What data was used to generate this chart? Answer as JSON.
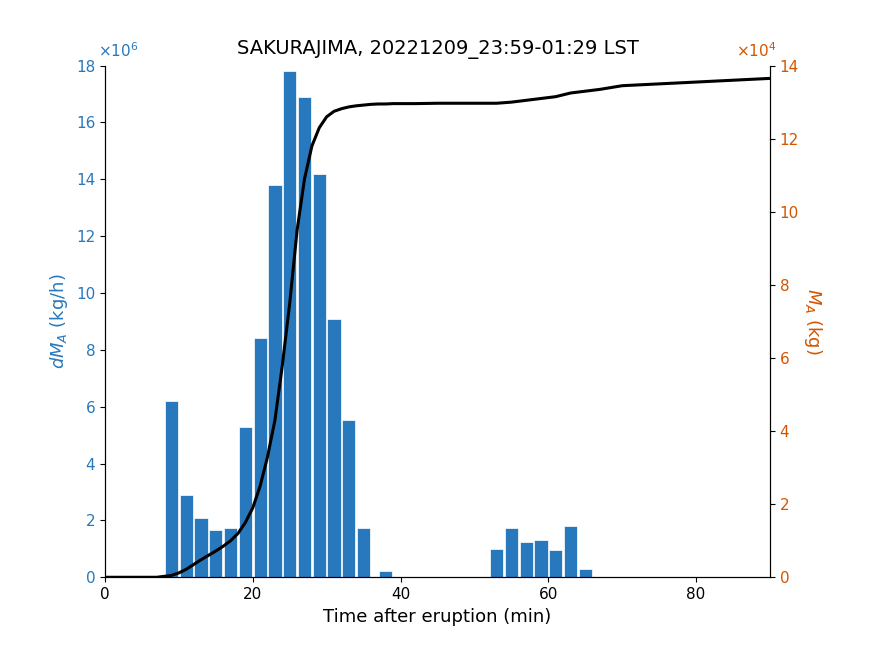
{
  "title": "SAKURAJIMA, 20221209_23:59-01:29 LST",
  "xlabel": "Time after eruption (min)",
  "ylabel_left": "$dM_A$ (kg/h)",
  "ylabel_right": "$M_A$ (kg)",
  "bar_color": "#2878bd",
  "line_color": "#000000",
  "left_axis_color": "#2878bd",
  "right_axis_color": "#d45500",
  "bar_centers": [
    9,
    11,
    13,
    15,
    17,
    19,
    21,
    23,
    25,
    27,
    29,
    31,
    33,
    35,
    37,
    38,
    53,
    55,
    57,
    59,
    61,
    63,
    65,
    67
  ],
  "bar_heights": [
    6.2,
    2.9,
    2.1,
    1.65,
    1.75,
    5.3,
    8.4,
    13.8,
    17.8,
    16.9,
    14.2,
    9.1,
    5.55,
    1.75,
    0.0,
    0.22,
    1.0,
    1.75,
    1.25,
    1.3,
    0.95,
    1.8,
    0.3,
    0.0
  ],
  "bar_width": 1.8,
  "cumulative_x": [
    0,
    7,
    9,
    10,
    11,
    12,
    13,
    14,
    15,
    16,
    17,
    18,
    19,
    20,
    21,
    22,
    23,
    24,
    25,
    26,
    27,
    28,
    29,
    30,
    31,
    32,
    33,
    34,
    35,
    36,
    37,
    38,
    39,
    42,
    45,
    48,
    50,
    53,
    55,
    57,
    59,
    61,
    63,
    65,
    67,
    70,
    75,
    80,
    85,
    90
  ],
  "cumulative_y": [
    0,
    0,
    0.05,
    0.12,
    0.22,
    0.35,
    0.48,
    0.6,
    0.72,
    0.85,
    1.0,
    1.2,
    1.5,
    1.9,
    2.5,
    3.3,
    4.3,
    5.8,
    7.5,
    9.5,
    10.9,
    11.8,
    12.3,
    12.6,
    12.75,
    12.82,
    12.87,
    12.9,
    12.92,
    12.94,
    12.95,
    12.95,
    12.96,
    12.96,
    12.97,
    12.97,
    12.97,
    12.97,
    13.0,
    13.05,
    13.1,
    13.15,
    13.25,
    13.3,
    13.35,
    13.45,
    13.5,
    13.55,
    13.6,
    13.65
  ],
  "xlim": [
    0,
    90
  ],
  "ylim_left": [
    0,
    18
  ],
  "ylim_right": [
    0,
    14
  ],
  "xticks": [
    0,
    20,
    40,
    60,
    80
  ],
  "yticks_left": [
    0,
    2,
    4,
    6,
    8,
    10,
    12,
    14,
    16,
    18
  ],
  "yticks_right": [
    0,
    2,
    4,
    6,
    8,
    10,
    12,
    14
  ],
  "background_color": "#ffffff"
}
